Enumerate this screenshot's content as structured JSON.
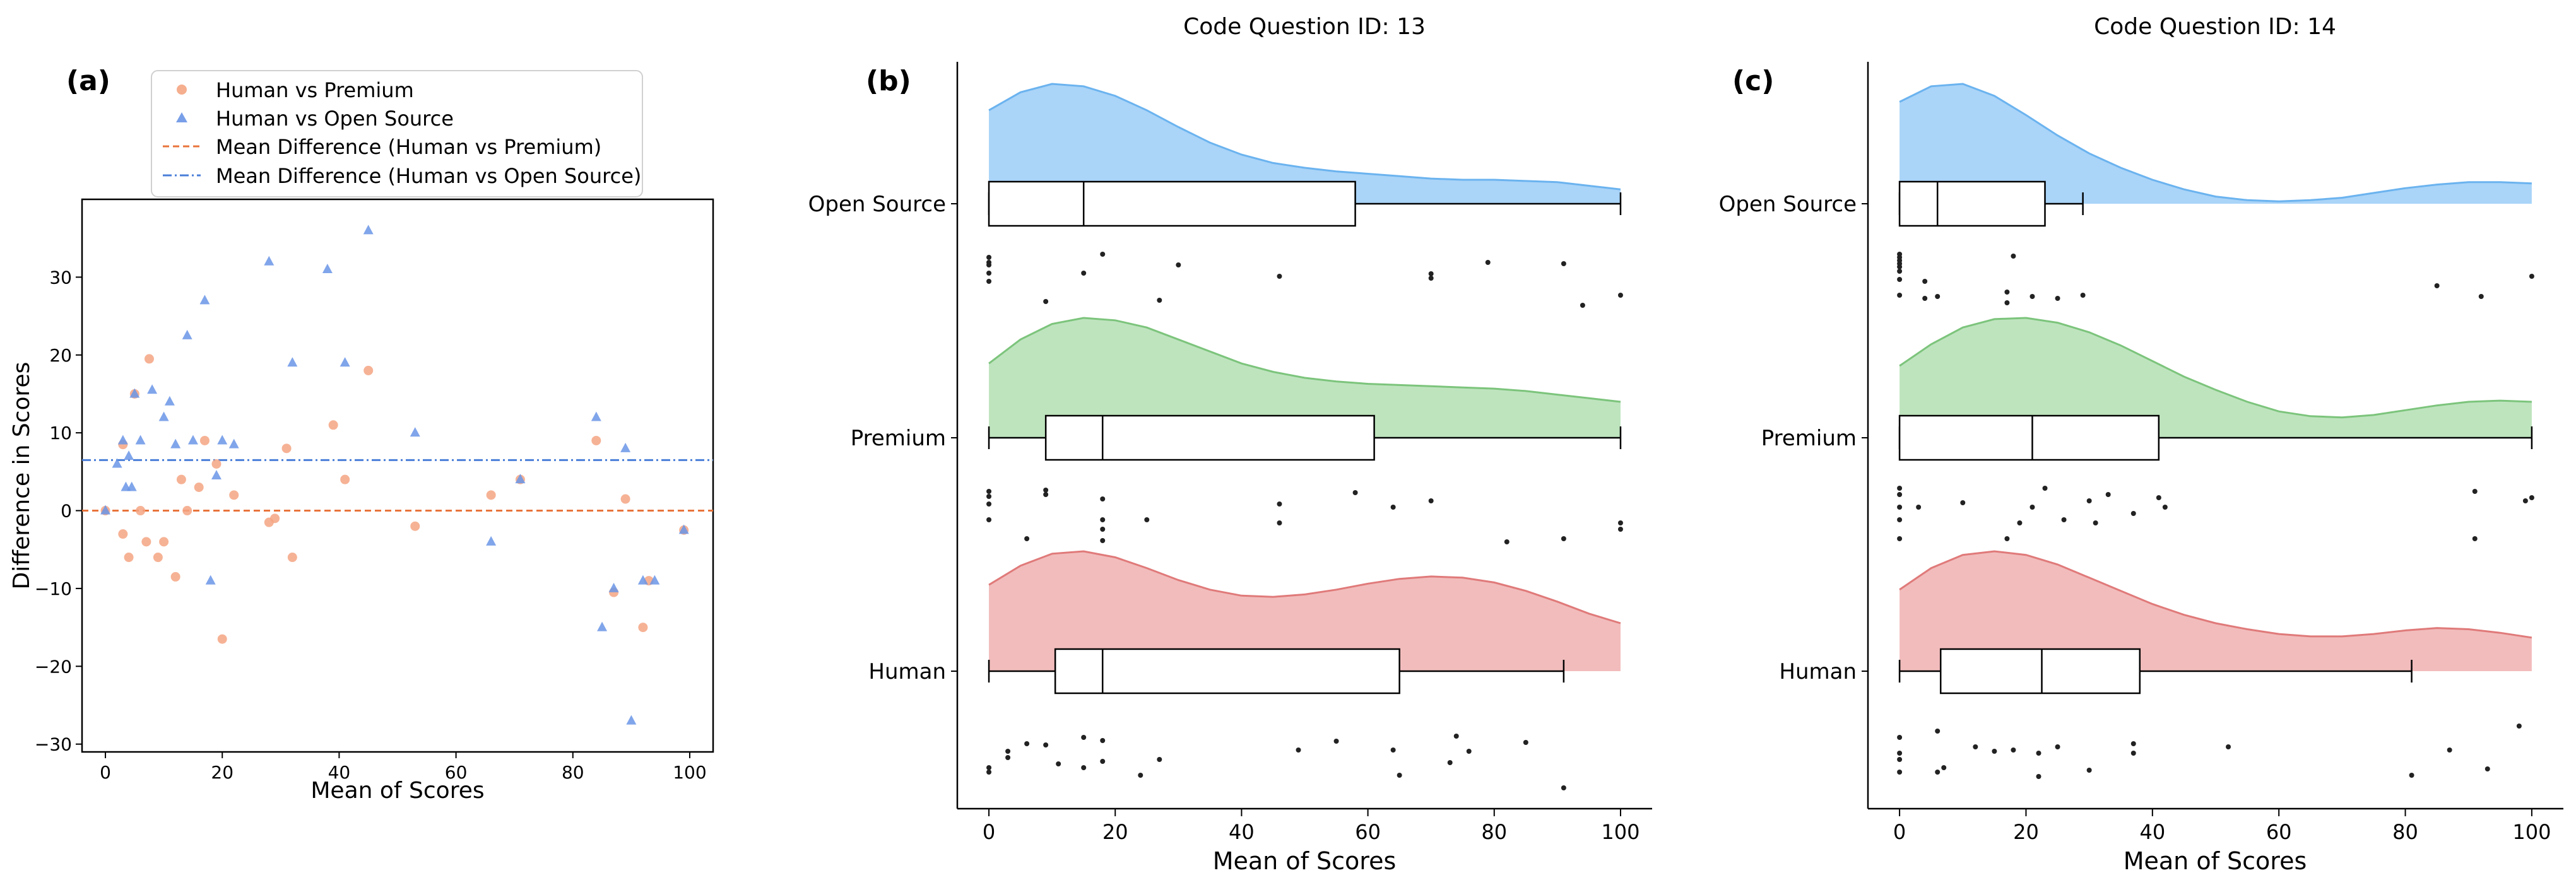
{
  "figure": {
    "panel_labels": [
      "(a)",
      "(b)",
      "(c)"
    ]
  },
  "chart_data": [
    {
      "type": "scatter",
      "panel": "(a)",
      "title": "",
      "xlabel": "Mean of Scores",
      "ylabel": "Difference in Scores",
      "xlim": [
        -4,
        104
      ],
      "ylim": [
        -31,
        40
      ],
      "xticks": [
        "0",
        "20",
        "40",
        "60",
        "80",
        "100"
      ],
      "yticks": [
        "−30",
        "−20",
        "−10",
        "0",
        "10",
        "20",
        "30"
      ],
      "grid": false,
      "legend_position": "top-center",
      "colors": {
        "premium": "#f4a582",
        "open_source": "#6a95e6",
        "premium_line": "#e8743b",
        "open_line": "#4a7fd8"
      },
      "series": [
        {
          "name": "Human vs Premium",
          "marker": "circle",
          "points": [
            [
              0,
              0
            ],
            [
              3,
              8.5
            ],
            [
              3,
              -3
            ],
            [
              4,
              -6
            ],
            [
              5,
              15
            ],
            [
              6,
              0
            ],
            [
              7,
              -4
            ],
            [
              7.5,
              19.5
            ],
            [
              9,
              -6
            ],
            [
              10,
              -4
            ],
            [
              12,
              -8.5
            ],
            [
              13,
              4
            ],
            [
              14,
              0
            ],
            [
              16,
              3
            ],
            [
              17,
              9
            ],
            [
              19,
              6
            ],
            [
              20,
              -16.5
            ],
            [
              22,
              2
            ],
            [
              28,
              -1.5
            ],
            [
              29,
              -1
            ],
            [
              31,
              8
            ],
            [
              32,
              -6
            ],
            [
              39,
              11
            ],
            [
              41,
              4
            ],
            [
              45,
              18
            ],
            [
              53,
              -2
            ],
            [
              66,
              2
            ],
            [
              71,
              4
            ],
            [
              84,
              9
            ],
            [
              87,
              -10.5
            ],
            [
              89,
              1.5
            ],
            [
              92,
              -15
            ],
            [
              93,
              -9
            ],
            [
              99,
              -2.5
            ]
          ]
        },
        {
          "name": "Human vs Open Source",
          "marker": "triangle",
          "points": [
            [
              0,
              0
            ],
            [
              2,
              6
            ],
            [
              3,
              9
            ],
            [
              3.5,
              3
            ],
            [
              4,
              7
            ],
            [
              4.5,
              3
            ],
            [
              5,
              15
            ],
            [
              6,
              9
            ],
            [
              8,
              15.5
            ],
            [
              10,
              12
            ],
            [
              11,
              14
            ],
            [
              12,
              8.5
            ],
            [
              14,
              22.5
            ],
            [
              15,
              9
            ],
            [
              17,
              27
            ],
            [
              18,
              -9
            ],
            [
              19,
              4.5
            ],
            [
              20,
              9
            ],
            [
              22,
              8.5
            ],
            [
              28,
              32
            ],
            [
              32,
              19
            ],
            [
              38,
              31
            ],
            [
              41,
              19
            ],
            [
              45,
              36
            ],
            [
              53,
              10
            ],
            [
              66,
              -4
            ],
            [
              71,
              4
            ],
            [
              84,
              12
            ],
            [
              85,
              -15
            ],
            [
              87,
              -10
            ],
            [
              89,
              8
            ],
            [
              90,
              -27
            ],
            [
              92,
              -9
            ],
            [
              94,
              -9
            ],
            [
              99,
              -2.5
            ]
          ]
        }
      ],
      "reference_lines": [
        {
          "name": "Mean Difference (Human vs Premium)",
          "y": 0,
          "style": "dashed"
        },
        {
          "name": "Mean Difference (Human vs Open Source)",
          "y": 6.5,
          "style": "dashdot"
        }
      ]
    },
    {
      "type": "raincloud",
      "panel": "(b)",
      "title": "Code Question ID: 13",
      "xlabel": "Mean of Scores",
      "xlim": [
        -5,
        105
      ],
      "xticks": [
        "0",
        "20",
        "40",
        "60",
        "80",
        "100"
      ],
      "categories": [
        "Open Source",
        "Premium",
        "Human"
      ],
      "series": [
        {
          "category": "Open Source",
          "color": "#8ec6f5",
          "edge": "#6bb3ef",
          "density": [
            0.78,
            0.93,
            1.0,
            0.98,
            0.9,
            0.78,
            0.64,
            0.51,
            0.41,
            0.34,
            0.3,
            0.27,
            0.25,
            0.23,
            0.21,
            0.2,
            0.2,
            0.19,
            0.18,
            0.15,
            0.12
          ],
          "box": {
            "min": 0,
            "q1": 0,
            "median": 15,
            "q3": 58,
            "max": 100
          },
          "points": [
            [
              0,
              0.1
            ],
            [
              0,
              0.18
            ],
            [
              0,
              0.22
            ],
            [
              0,
              0.35
            ],
            [
              0,
              0.48
            ],
            [
              9,
              0.8
            ],
            [
              15,
              0.35
            ],
            [
              18,
              0.05
            ],
            [
              27,
              0.78
            ],
            [
              30,
              0.22
            ],
            [
              46,
              0.4
            ],
            [
              70,
              0.36
            ],
            [
              70,
              0.43
            ],
            [
              79,
              0.18
            ],
            [
              91,
              0.2
            ],
            [
              94,
              0.86
            ],
            [
              100,
              0.7
            ]
          ]
        },
        {
          "category": "Premium",
          "color": "#a8dba8",
          "edge": "#7cc47c",
          "density": [
            0.62,
            0.82,
            0.95,
            1.0,
            0.98,
            0.92,
            0.82,
            0.72,
            0.62,
            0.55,
            0.5,
            0.47,
            0.45,
            0.44,
            0.43,
            0.42,
            0.41,
            0.39,
            0.36,
            0.33,
            0.3
          ],
          "box": {
            "min": 0,
            "q1": 9,
            "median": 18,
            "q3": 61,
            "max": 100
          },
          "points": [
            [
              0,
              0.1
            ],
            [
              0,
              0.18
            ],
            [
              0,
              0.3
            ],
            [
              0,
              0.55
            ],
            [
              6,
              0.85
            ],
            [
              9,
              0.08
            ],
            [
              9,
              0.15
            ],
            [
              18,
              0.55
            ],
            [
              18,
              0.7
            ],
            [
              18,
              0.88
            ],
            [
              18,
              0.22
            ],
            [
              25,
              0.55
            ],
            [
              46,
              0.3
            ],
            [
              46,
              0.6
            ],
            [
              58,
              0.12
            ],
            [
              64,
              0.35
            ],
            [
              70,
              0.25
            ],
            [
              82,
              0.9
            ],
            [
              91,
              0.85
            ],
            [
              100,
              0.6
            ],
            [
              100,
              0.7
            ]
          ]
        },
        {
          "category": "Human",
          "color": "#eea6a6",
          "edge": "#e07a7a",
          "density": [
            0.72,
            0.88,
            0.98,
            1.0,
            0.95,
            0.86,
            0.76,
            0.68,
            0.63,
            0.62,
            0.64,
            0.68,
            0.73,
            0.77,
            0.79,
            0.78,
            0.74,
            0.67,
            0.58,
            0.48,
            0.4
          ],
          "box": {
            "min": 0,
            "q1": 10.5,
            "median": 18,
            "q3": 65,
            "max": 91
          },
          "points": [
            [
              0,
              0.85
            ],
            [
              0,
              0.78
            ],
            [
              3,
              0.62
            ],
            [
              3,
              0.52
            ],
            [
              6,
              0.4
            ],
            [
              9,
              0.42
            ],
            [
              11,
              0.72
            ],
            [
              15,
              0.3
            ],
            [
              15,
              0.78
            ],
            [
              18,
              0.68
            ],
            [
              18,
              0.35
            ],
            [
              24,
              0.9
            ],
            [
              27,
              0.65
            ],
            [
              49,
              0.5
            ],
            [
              55,
              0.36
            ],
            [
              64,
              0.5
            ],
            [
              65,
              0.9
            ],
            [
              73,
              0.7
            ],
            [
              74,
              0.28
            ],
            [
              76,
              0.52
            ],
            [
              85,
              0.38
            ],
            [
              91,
              1.1
            ]
          ]
        }
      ]
    },
    {
      "type": "raincloud",
      "panel": "(c)",
      "title": "Code Question ID: 14",
      "xlabel": "Mean of Scores",
      "xlim": [
        -5,
        105
      ],
      "xticks": [
        "0",
        "20",
        "40",
        "60",
        "80",
        "100"
      ],
      "categories": [
        "Open Source",
        "Premium",
        "Human"
      ],
      "series": [
        {
          "category": "Open Source",
          "color": "#8ec6f5",
          "edge": "#6bb3ef",
          "density": [
            0.85,
            0.98,
            1.0,
            0.9,
            0.74,
            0.57,
            0.42,
            0.3,
            0.2,
            0.12,
            0.06,
            0.03,
            0.02,
            0.03,
            0.05,
            0.09,
            0.13,
            0.16,
            0.18,
            0.18,
            0.17
          ],
          "box": {
            "min": 0,
            "q1": 0,
            "median": 6,
            "q3": 23,
            "max": 29
          },
          "points": [
            [
              0,
              0.05
            ],
            [
              0,
              0.1
            ],
            [
              0,
              0.15
            ],
            [
              0,
              0.2
            ],
            [
              0,
              0.25
            ],
            [
              0,
              0.32
            ],
            [
              0,
              0.45
            ],
            [
              0,
              0.7
            ],
            [
              4,
              0.48
            ],
            [
              4,
              0.75
            ],
            [
              6,
              0.72
            ],
            [
              17,
              0.65
            ],
            [
              17,
              0.82
            ],
            [
              18,
              0.08
            ],
            [
              21,
              0.72
            ],
            [
              25,
              0.75
            ],
            [
              29,
              0.7
            ],
            [
              85,
              0.55
            ],
            [
              92,
              0.72
            ],
            [
              100,
              0.4
            ]
          ]
        },
        {
          "category": "Premium",
          "color": "#a8dba8",
          "edge": "#7cc47c",
          "density": [
            0.6,
            0.78,
            0.92,
            0.99,
            1.0,
            0.96,
            0.88,
            0.77,
            0.64,
            0.51,
            0.4,
            0.3,
            0.22,
            0.18,
            0.17,
            0.19,
            0.23,
            0.27,
            0.3,
            0.31,
            0.3
          ],
          "box": {
            "min": 0,
            "q1": 0,
            "median": 21,
            "q3": 41,
            "max": 100
          },
          "points": [
            [
              0,
              0.85
            ],
            [
              0,
              0.55
            ],
            [
              0,
              0.35
            ],
            [
              0,
              0.15
            ],
            [
              0,
              0.05
            ],
            [
              3,
              0.35
            ],
            [
              10,
              0.28
            ],
            [
              17,
              0.85
            ],
            [
              19,
              0.6
            ],
            [
              21,
              0.35
            ],
            [
              23,
              0.05
            ],
            [
              26,
              0.55
            ],
            [
              30,
              0.25
            ],
            [
              31,
              0.6
            ],
            [
              33,
              0.15
            ],
            [
              37,
              0.45
            ],
            [
              41,
              0.2
            ],
            [
              42,
              0.35
            ],
            [
              91,
              0.85
            ],
            [
              91,
              0.1
            ],
            [
              99,
              0.25
            ],
            [
              100,
              0.2
            ]
          ]
        },
        {
          "category": "Human",
          "color": "#eea6a6",
          "edge": "#e07a7a",
          "density": [
            0.68,
            0.86,
            0.97,
            1.0,
            0.97,
            0.89,
            0.78,
            0.67,
            0.56,
            0.47,
            0.4,
            0.35,
            0.31,
            0.29,
            0.29,
            0.31,
            0.34,
            0.36,
            0.35,
            0.32,
            0.28
          ],
          "box": {
            "min": 0,
            "q1": 6.5,
            "median": 22.5,
            "q3": 38,
            "max": 81
          },
          "points": [
            [
              0,
              0.85
            ],
            [
              0,
              0.65
            ],
            [
              0,
              0.55
            ],
            [
              0,
              0.3
            ],
            [
              6,
              0.85
            ],
            [
              6,
              0.2
            ],
            [
              7,
              0.78
            ],
            [
              12,
              0.45
            ],
            [
              15,
              0.52
            ],
            [
              18,
              0.5
            ],
            [
              22,
              0.92
            ],
            [
              22,
              0.55
            ],
            [
              25,
              0.45
            ],
            [
              30,
              0.82
            ],
            [
              37,
              0.4
            ],
            [
              37,
              0.55
            ],
            [
              52,
              0.45
            ],
            [
              81,
              0.9
            ],
            [
              87,
              0.5
            ],
            [
              93,
              0.8
            ],
            [
              98,
              0.12
            ]
          ]
        }
      ]
    }
  ]
}
